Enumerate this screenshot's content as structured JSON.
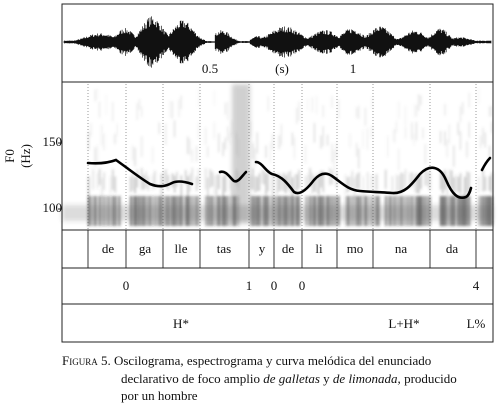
{
  "figure": {
    "time_labels": [
      "0.5",
      "(s)",
      "1"
    ],
    "y_axis_label": "F0 (Hz)",
    "y_ticks": [
      "150",
      "100"
    ],
    "syllables": [
      "de",
      "ga",
      "lle",
      "tas",
      "y",
      "de",
      "li",
      "mo",
      "na",
      "da"
    ],
    "break_indices": [
      "0",
      "1",
      "0",
      "0",
      "4"
    ],
    "tones": [
      "H*",
      "L+H*",
      "L%"
    ]
  },
  "caption": {
    "fig_label": "Figura",
    "number": "5.",
    "text_1": "Oscilograma, espectrograma y curva melódica del enunciado",
    "text_2a": "declarativo de foco amplio",
    "text_2b": "de galletas",
    "text_2c": "y",
    "text_2d": "de limonada,",
    "text_2e": "producido",
    "text_3": "por un hombre"
  },
  "colors": {
    "ink": "#111111",
    "f0_curve": "#000000",
    "spectrogram": "#7a7a7a"
  }
}
